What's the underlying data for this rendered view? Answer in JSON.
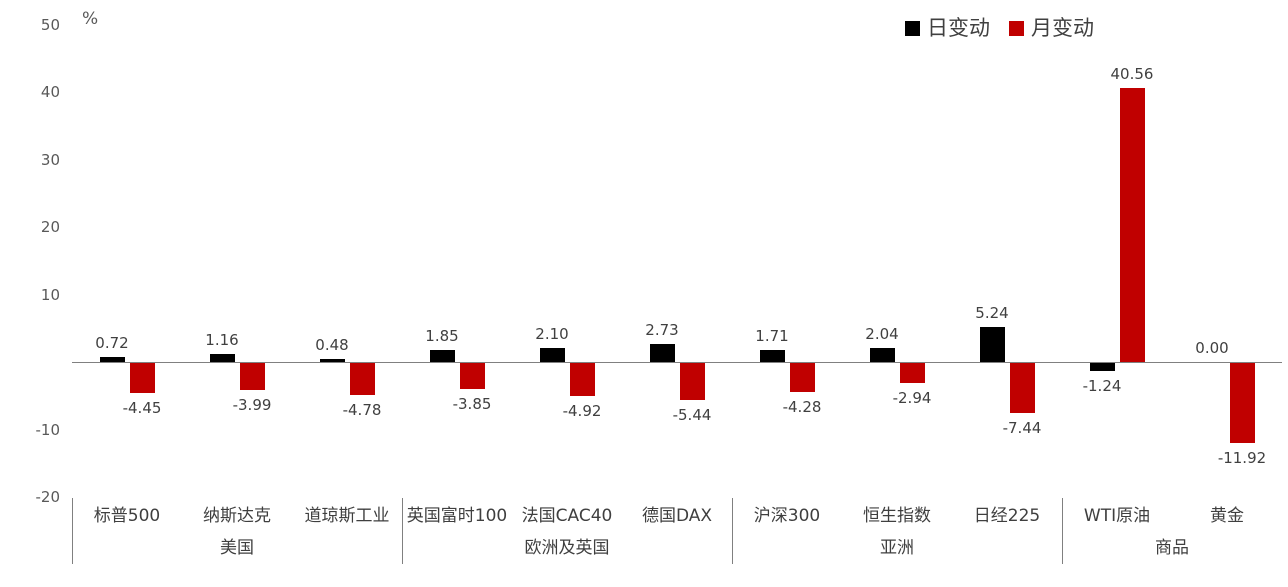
{
  "chart_data": {
    "type": "bar",
    "unit_label": "%",
    "categories": [
      "标普500",
      "纳斯达克",
      "道琼斯工业",
      "英国富时100",
      "法国CAC40",
      "德国DAX",
      "沪深300",
      "恒生指数",
      "日经225",
      "WTI原油",
      "黄金"
    ],
    "groups": [
      {
        "label": "美国",
        "span": 3
      },
      {
        "label": "欧洲及英国",
        "span": 3
      },
      {
        "label": "亚洲",
        "span": 3
      },
      {
        "label": "商品",
        "span": 2
      }
    ],
    "series": [
      {
        "name": "日变动",
        "color": "#000000",
        "values": [
          0.72,
          1.16,
          0.48,
          1.85,
          2.1,
          2.73,
          1.71,
          2.04,
          5.24,
          -1.24,
          0.0
        ]
      },
      {
        "name": "月变动",
        "color": "#C00000",
        "values": [
          -4.45,
          -3.99,
          -4.78,
          -3.85,
          -4.92,
          -5.44,
          -4.28,
          -2.94,
          -7.44,
          40.56,
          -11.92
        ]
      }
    ],
    "value_labels": {
      "日变动": [
        "0.72",
        "1.16",
        "0.48",
        "1.85",
        "2.10",
        "2.73",
        "1.71",
        "2.04",
        "5.24",
        "-1.24",
        "0.00"
      ],
      "月变动": [
        "-4.45",
        "-3.99",
        "-4.78",
        "-3.85",
        "-4.92",
        "-5.44",
        "-4.28",
        "-2.94",
        "-7.44",
        "40.56",
        "-11.92"
      ]
    },
    "y_ticks": [
      50,
      40,
      30,
      20,
      10,
      -10,
      -20
    ],
    "ylim": [
      -20,
      50
    ],
    "grid": false,
    "legend_position": "top-right",
    "axis_color": "#808080",
    "text_color": "#404040"
  }
}
